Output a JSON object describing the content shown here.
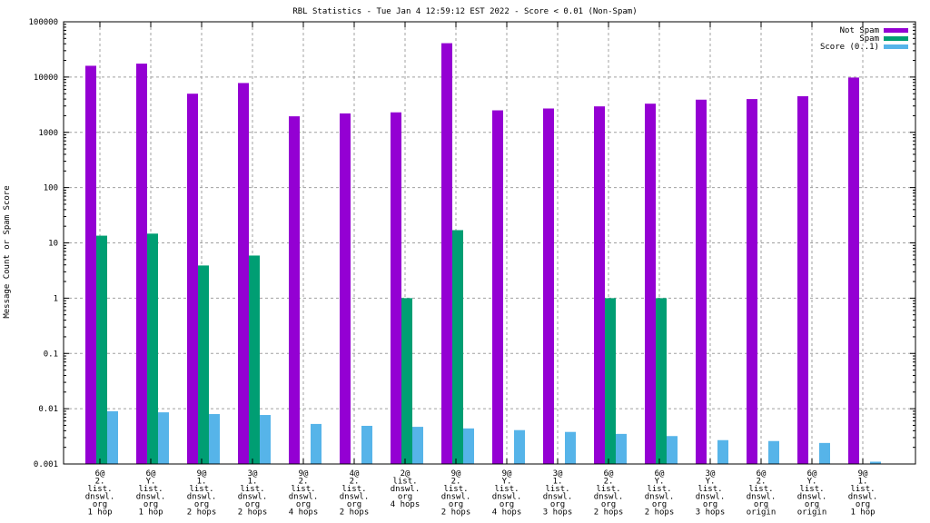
{
  "chart_data": {
    "type": "bar",
    "title": "RBL Statistics - Tue Jan  4 12:59:12 EST 2022 - Score < 0.01 (Non-Spam)",
    "xlabel": "",
    "ylabel": "Message Count or Spam Score",
    "yscale": "log",
    "ylim": [
      0.001,
      100000
    ],
    "yticks": [
      "100000",
      "10000",
      "1000",
      "100",
      "10",
      "1",
      "0.1",
      "0.01",
      "0.001"
    ],
    "ytick_values": [
      100000,
      10000,
      1000,
      100,
      10,
      1,
      0.1,
      0.01,
      0.001
    ],
    "grid": true,
    "legend_position": "top-right",
    "categories": [
      [
        "6@",
        "2.",
        "list.",
        "dnswl.",
        "org",
        "1 hop"
      ],
      [
        "6@",
        "Y.",
        "list.",
        "dnswl.",
        "org",
        "1 hop"
      ],
      [
        "9@",
        "1.",
        "list.",
        "dnswl.",
        "org",
        "2 hops"
      ],
      [
        "3@",
        "1.",
        "list.",
        "dnswl.",
        "org",
        "2 hops"
      ],
      [
        "9@",
        "2.",
        "list.",
        "dnswl.",
        "org",
        "4 hops"
      ],
      [
        "4@",
        "2.",
        "list.",
        "dnswl.",
        "org",
        "2 hops"
      ],
      [
        "2@",
        "list.",
        "dnswl.",
        "org",
        "4 hops"
      ],
      [
        "9@",
        "2.",
        "list.",
        "dnswl.",
        "org",
        "2 hops"
      ],
      [
        "9@",
        "Y.",
        "list.",
        "dnswl.",
        "org",
        "4 hops"
      ],
      [
        "3@",
        "1.",
        "list.",
        "dnswl.",
        "org",
        "3 hops"
      ],
      [
        "6@",
        "2.",
        "list.",
        "dnswl.",
        "org",
        "2 hops"
      ],
      [
        "6@",
        "Y.",
        "list.",
        "dnswl.",
        "org",
        "2 hops"
      ],
      [
        "3@",
        "Y.",
        "list.",
        "dnswl.",
        "org",
        "3 hops"
      ],
      [
        "6@",
        "2.",
        "list.",
        "dnswl.",
        "org",
        "origin"
      ],
      [
        "6@",
        "Y.",
        "list.",
        "dnswl.",
        "org",
        "origin"
      ],
      [
        "9@",
        "1.",
        "list.",
        "dnswl.",
        "org",
        "1 hop"
      ]
    ],
    "series": [
      {
        "name": "Not Spam",
        "color": "#9400d3",
        "values": [
          16000,
          17500,
          5000,
          7800,
          1950,
          2200,
          2300,
          41000,
          2500,
          2700,
          2950,
          3300,
          3900,
          4000,
          4500,
          9800
        ]
      },
      {
        "name": "Spam",
        "color": "#009e73",
        "values": [
          13.5,
          14.7,
          3.9,
          5.9,
          null,
          null,
          1,
          17,
          null,
          null,
          1,
          1,
          null,
          null,
          null,
          null
        ]
      },
      {
        "name": "Score (0..1)",
        "color": "#56b4e9",
        "values": [
          0.009,
          0.0086,
          0.008,
          0.0077,
          0.0053,
          0.0049,
          0.0047,
          0.0044,
          0.0041,
          0.0038,
          0.0035,
          0.0032,
          0.0027,
          0.0026,
          0.0024,
          0.0011
        ]
      }
    ]
  }
}
